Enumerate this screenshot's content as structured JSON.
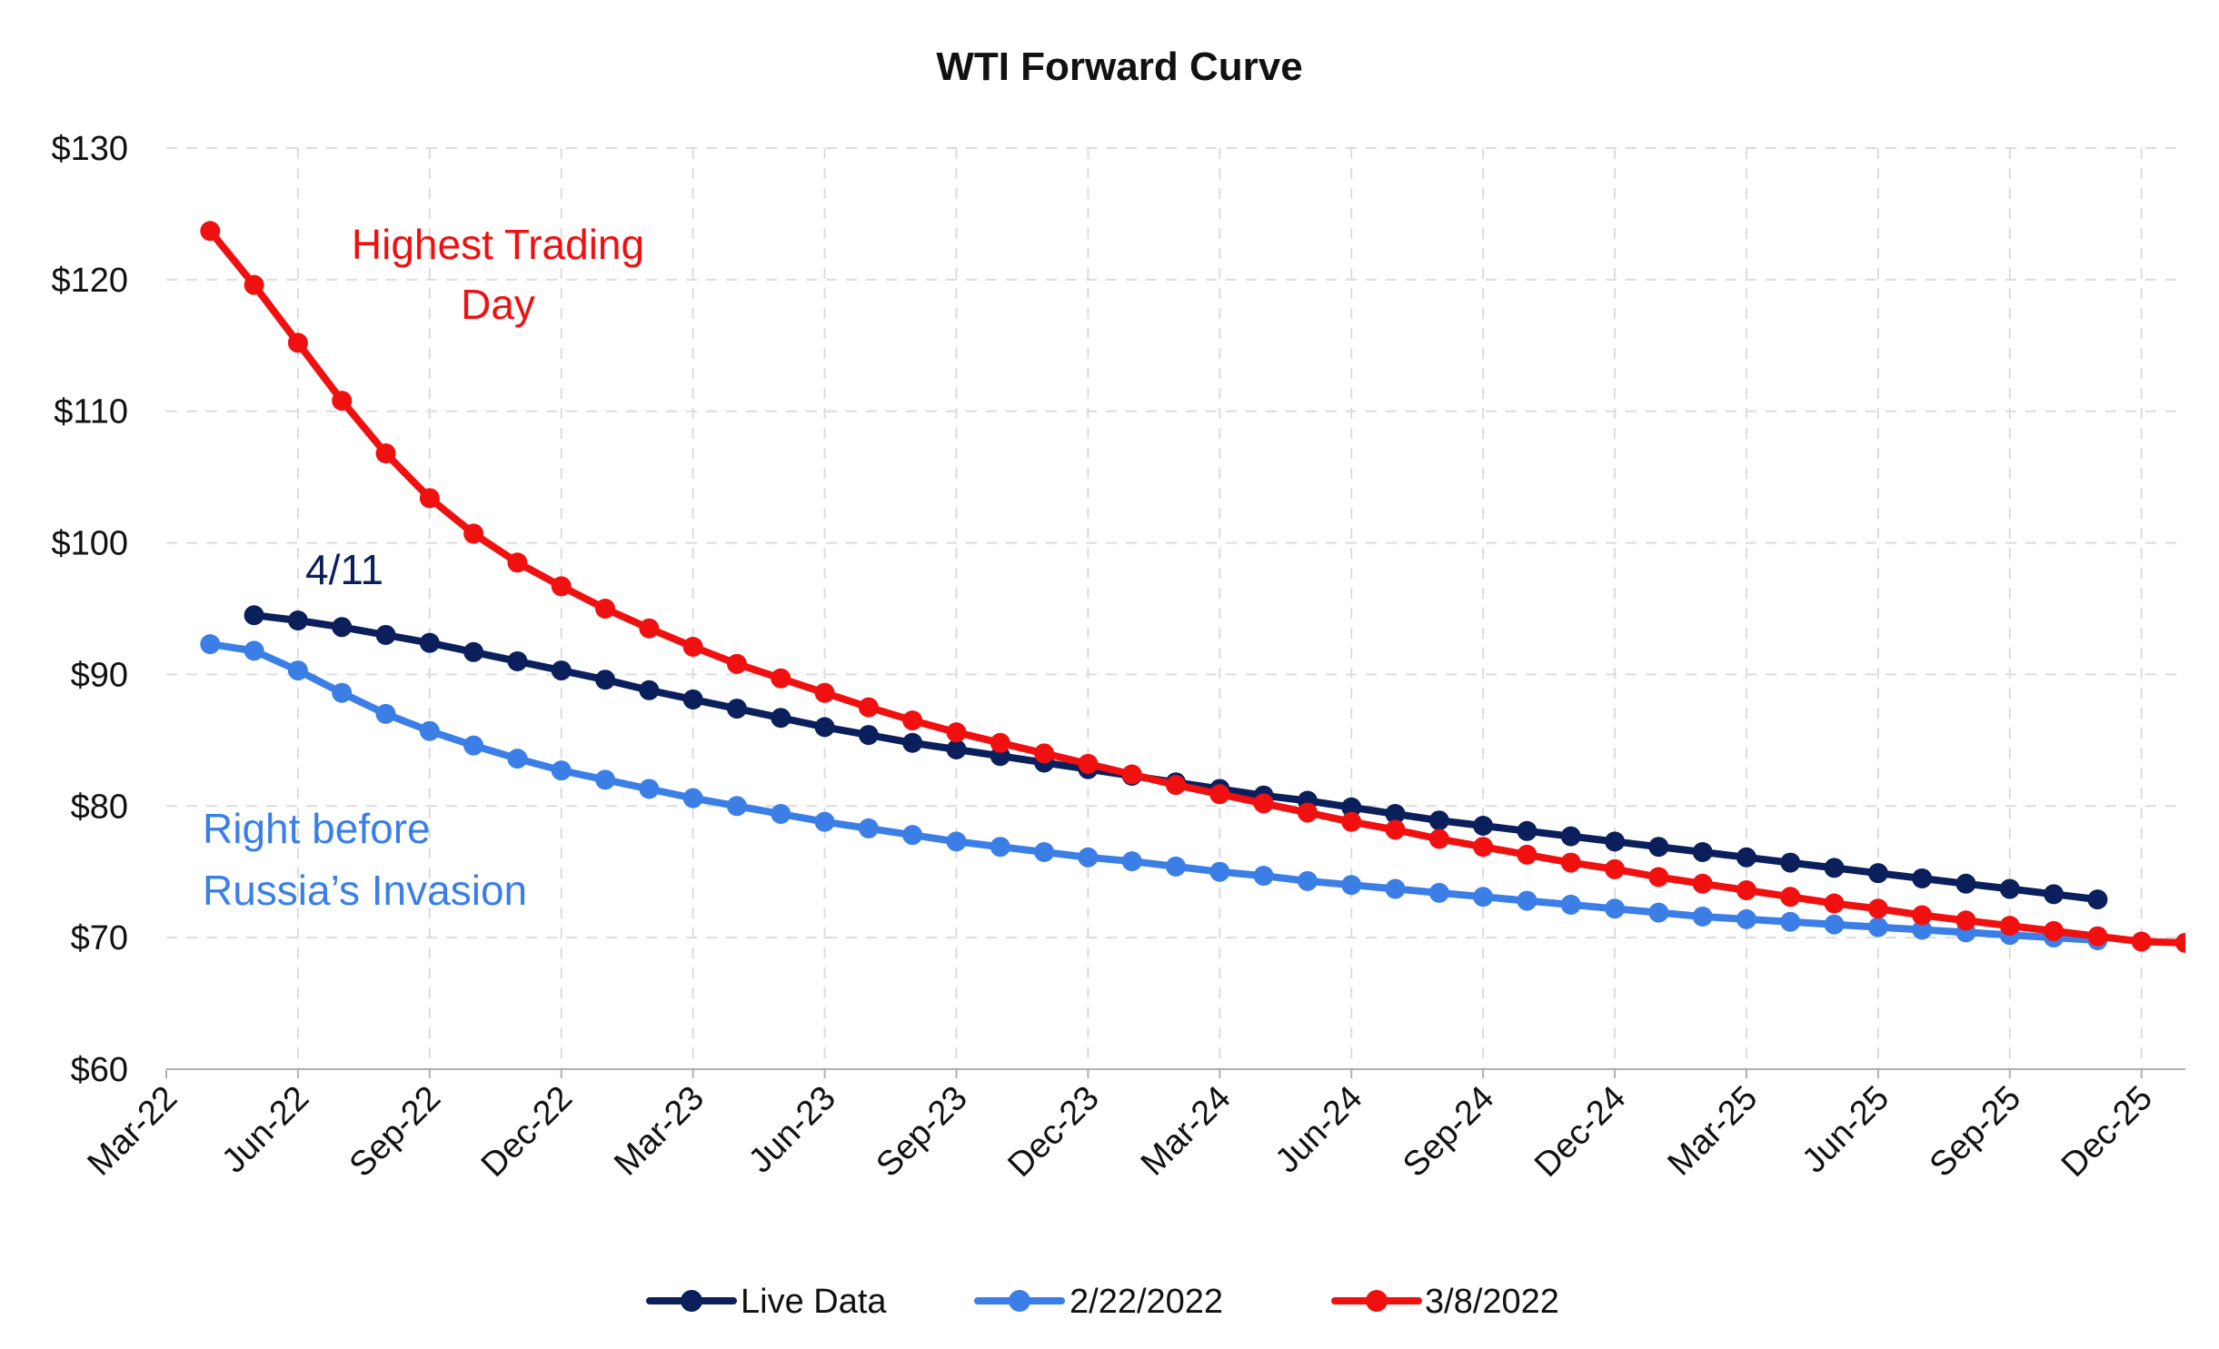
{
  "chart_data": {
    "type": "line",
    "title": "WTI Forward Curve",
    "xlabel": "",
    "ylabel": "",
    "ylim": [
      60,
      130
    ],
    "yticks": [
      "$60",
      "$70",
      "$80",
      "$90",
      "$100",
      "$110",
      "$120",
      "$130"
    ],
    "xticks": [
      "Mar-22",
      "Jun-22",
      "Sep-22",
      "Dec-22",
      "Mar-23",
      "Jun-23",
      "Sep-23",
      "Dec-23",
      "Mar-24",
      "Jun-24",
      "Sep-24",
      "Dec-24",
      "Mar-25",
      "Jun-25",
      "Sep-25",
      "Dec-25"
    ],
    "x_unit": "months from Mar-22",
    "grid": true,
    "legend_position": "bottom",
    "series": [
      {
        "name": "Live Data",
        "color": "#0b1f5c",
        "start_month": "May-22",
        "values": [
          94.5,
          94.1,
          93.6,
          93.0,
          92.4,
          91.7,
          91.0,
          90.3,
          89.6,
          88.8,
          88.1,
          87.4,
          86.7,
          86.0,
          85.4,
          84.8,
          84.3,
          83.8,
          83.3,
          82.8,
          82.3,
          81.8,
          81.3,
          80.8,
          80.4,
          79.9,
          79.4,
          78.9,
          78.5,
          78.1,
          77.7,
          77.3,
          76.9,
          76.5,
          76.1,
          75.7,
          75.3,
          74.9,
          74.5,
          74.1,
          73.7,
          73.3,
          72.9
        ]
      },
      {
        "name": "2/22/2022",
        "color": "#3b7fe6",
        "start_month": "Apr-22",
        "values": [
          92.3,
          91.8,
          90.3,
          88.6,
          87.0,
          85.7,
          84.6,
          83.6,
          82.7,
          82.0,
          81.3,
          80.6,
          80.0,
          79.4,
          78.8,
          78.3,
          77.8,
          77.3,
          76.9,
          76.5,
          76.1,
          75.8,
          75.4,
          75.0,
          74.7,
          74.3,
          74.0,
          73.7,
          73.4,
          73.1,
          72.8,
          72.5,
          72.2,
          71.9,
          71.6,
          71.4,
          71.2,
          71.0,
          70.8,
          70.6,
          70.4,
          70.2,
          70.0,
          69.8
        ]
      },
      {
        "name": "3/8/2022",
        "color": "#f01010",
        "start_month": "Apr-22",
        "values": [
          123.7,
          119.6,
          115.2,
          110.8,
          106.8,
          103.4,
          100.7,
          98.5,
          96.7,
          95.0,
          93.5,
          92.1,
          90.8,
          89.7,
          88.6,
          87.5,
          86.5,
          85.6,
          84.8,
          84.0,
          83.2,
          82.4,
          81.6,
          80.9,
          80.2,
          79.5,
          78.8,
          78.2,
          77.5,
          76.9,
          76.3,
          75.7,
          75.2,
          74.6,
          74.1,
          73.6,
          73.1,
          72.6,
          72.2,
          71.7,
          71.3,
          70.9,
          70.5,
          70.1,
          69.7,
          69.6
        ]
      }
    ],
    "annotations": [
      {
        "text": "Highest Trading Day",
        "lines": [
          "Highest Trading",
          "Day"
        ],
        "color": "#f01010"
      },
      {
        "text": "4/11",
        "lines": [
          "4/11"
        ],
        "color": "#0b1f5c"
      },
      {
        "text": "Right before Russia’s Invasion",
        "lines": [
          "Right before",
          "Russia’s Invasion"
        ],
        "color": "#3b7fe6"
      }
    ]
  }
}
